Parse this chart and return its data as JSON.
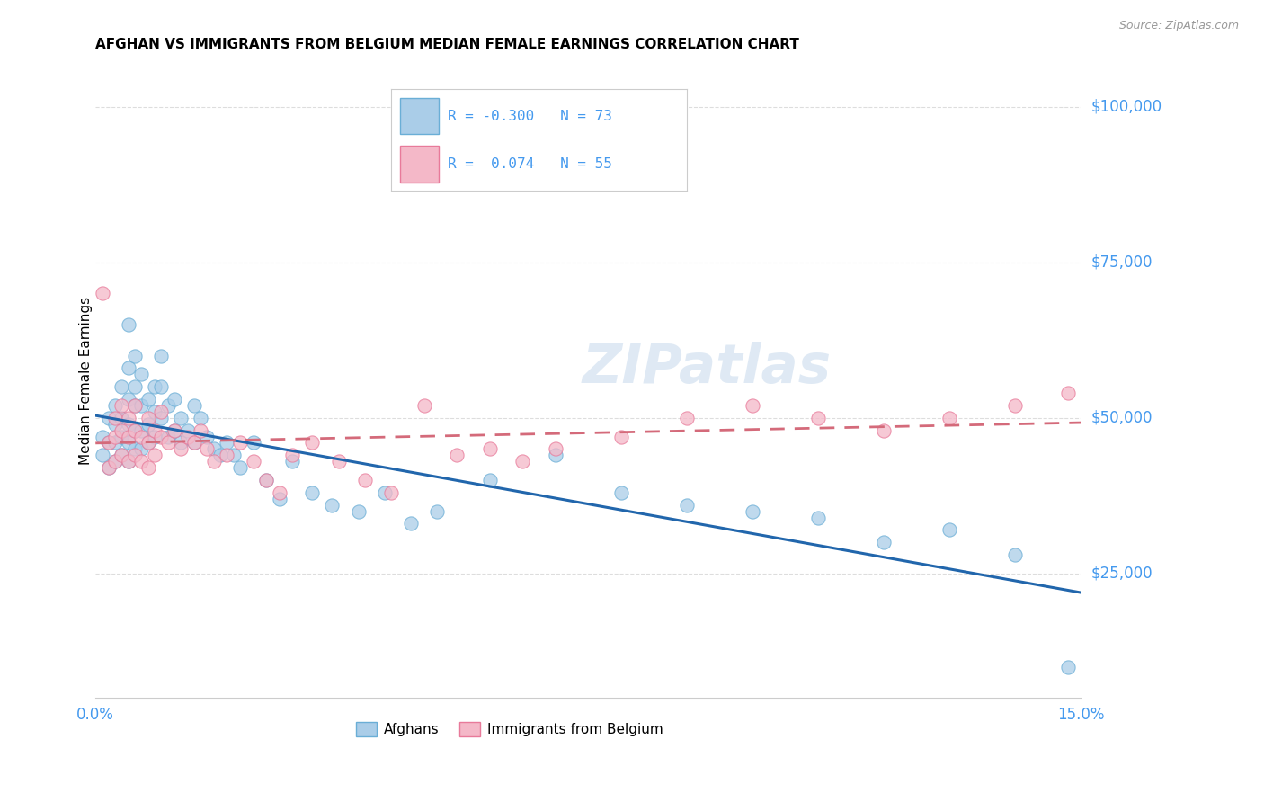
{
  "title": "AFGHAN VS IMMIGRANTS FROM BELGIUM MEDIAN FEMALE EARNINGS CORRELATION CHART",
  "source": "Source: ZipAtlas.com",
  "ylabel": "Median Female Earnings",
  "ytick_labels": [
    "$25,000",
    "$50,000",
    "$75,000",
    "$100,000"
  ],
  "ytick_values": [
    25000,
    50000,
    75000,
    100000
  ],
  "ymin": 5000,
  "ymax": 107000,
  "xmin": 0.0,
  "xmax": 0.15,
  "color_blue": "#AACDE8",
  "color_pink": "#F4B8C8",
  "color_blue_edge": "#6AAED6",
  "color_pink_edge": "#E87A9A",
  "color_line_blue": "#2166AC",
  "color_line_pink": "#D46A7A",
  "color_axis_label": "#4499EE",
  "watermark": "ZIPatlas",
  "background_color": "#FFFFFF",
  "grid_color": "#DDDDDD",
  "afghans_x": [
    0.001,
    0.001,
    0.002,
    0.002,
    0.002,
    0.003,
    0.003,
    0.003,
    0.003,
    0.004,
    0.004,
    0.004,
    0.004,
    0.005,
    0.005,
    0.005,
    0.005,
    0.005,
    0.005,
    0.006,
    0.006,
    0.006,
    0.006,
    0.006,
    0.007,
    0.007,
    0.007,
    0.007,
    0.008,
    0.008,
    0.008,
    0.009,
    0.009,
    0.009,
    0.01,
    0.01,
    0.01,
    0.011,
    0.011,
    0.012,
    0.012,
    0.013,
    0.013,
    0.014,
    0.015,
    0.015,
    0.016,
    0.017,
    0.018,
    0.019,
    0.02,
    0.021,
    0.022,
    0.024,
    0.026,
    0.028,
    0.03,
    0.033,
    0.036,
    0.04,
    0.044,
    0.048,
    0.052,
    0.06,
    0.07,
    0.08,
    0.09,
    0.1,
    0.11,
    0.12,
    0.13,
    0.14,
    0.148
  ],
  "afghans_y": [
    47000,
    44000,
    50000,
    46000,
    42000,
    52000,
    49000,
    46000,
    43000,
    55000,
    50000,
    47000,
    44000,
    65000,
    58000,
    53000,
    49000,
    46000,
    43000,
    60000,
    55000,
    52000,
    48000,
    45000,
    57000,
    52000,
    48000,
    45000,
    53000,
    49000,
    46000,
    55000,
    51000,
    47000,
    60000,
    55000,
    50000,
    52000,
    47000,
    53000,
    48000,
    50000,
    46000,
    48000,
    52000,
    46000,
    50000,
    47000,
    45000,
    44000,
    46000,
    44000,
    42000,
    46000,
    40000,
    37000,
    43000,
    38000,
    36000,
    35000,
    38000,
    33000,
    35000,
    40000,
    44000,
    38000,
    36000,
    35000,
    34000,
    30000,
    32000,
    28000,
    10000
  ],
  "belgium_x": [
    0.001,
    0.002,
    0.002,
    0.003,
    0.003,
    0.003,
    0.004,
    0.004,
    0.004,
    0.005,
    0.005,
    0.005,
    0.006,
    0.006,
    0.006,
    0.007,
    0.007,
    0.008,
    0.008,
    0.008,
    0.009,
    0.009,
    0.01,
    0.01,
    0.011,
    0.012,
    0.013,
    0.014,
    0.015,
    0.016,
    0.017,
    0.018,
    0.02,
    0.022,
    0.024,
    0.026,
    0.028,
    0.03,
    0.033,
    0.037,
    0.041,
    0.045,
    0.05,
    0.055,
    0.06,
    0.065,
    0.07,
    0.08,
    0.09,
    0.1,
    0.11,
    0.12,
    0.13,
    0.14,
    0.148
  ],
  "belgium_y": [
    70000,
    46000,
    42000,
    50000,
    47000,
    43000,
    52000,
    48000,
    44000,
    50000,
    47000,
    43000,
    52000,
    48000,
    44000,
    47000,
    43000,
    50000,
    46000,
    42000,
    48000,
    44000,
    51000,
    47000,
    46000,
    48000,
    45000,
    47000,
    46000,
    48000,
    45000,
    43000,
    44000,
    46000,
    43000,
    40000,
    38000,
    44000,
    46000,
    43000,
    40000,
    38000,
    52000,
    44000,
    45000,
    43000,
    45000,
    47000,
    50000,
    52000,
    50000,
    48000,
    50000,
    52000,
    54000
  ],
  "legend_text": [
    [
      "R = -0.300",
      "N = 73"
    ],
    [
      "R =  0.074",
      "N = 55"
    ]
  ]
}
